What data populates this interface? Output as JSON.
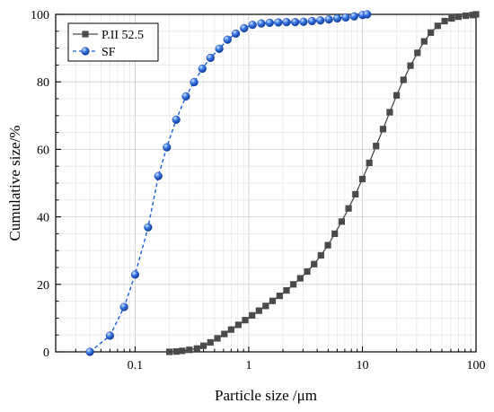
{
  "chart_data": {
    "type": "line",
    "xlabel": "Particle size /μm",
    "ylabel": "Cumulative size/%",
    "x_scale": "log",
    "xlim": [
      0.02,
      100
    ],
    "ylim": [
      0,
      100
    ],
    "x_ticks": [
      {
        "value": 0.1,
        "label": "0.1"
      },
      {
        "value": 1,
        "label": "1"
      },
      {
        "value": 10,
        "label": "10"
      },
      {
        "value": 100,
        "label": "100"
      }
    ],
    "y_ticks": [
      {
        "value": 0,
        "label": "0"
      },
      {
        "value": 20,
        "label": "20"
      },
      {
        "value": 40,
        "label": "40"
      },
      {
        "value": 60,
        "label": "60"
      },
      {
        "value": 80,
        "label": "80"
      },
      {
        "value": 100,
        "label": "100"
      }
    ],
    "grid": true,
    "legend_position": "top-left",
    "series": [
      {
        "name": "P.II 52.5",
        "color": "#4a4a4a",
        "marker": "square",
        "line_style": "solid",
        "x": [
          0.2,
          0.23,
          0.26,
          0.3,
          0.35,
          0.4,
          0.46,
          0.53,
          0.61,
          0.7,
          0.81,
          0.93,
          1.07,
          1.23,
          1.41,
          1.62,
          1.87,
          2.15,
          2.47,
          2.84,
          3.27,
          3.76,
          4.32,
          4.97,
          5.71,
          6.57,
          7.56,
          8.69,
          10,
          11.5,
          13.2,
          15.2,
          17.4,
          20,
          23,
          26.5,
          30.5,
          35,
          40,
          46,
          53,
          61,
          70,
          81,
          93,
          100
        ],
        "y": [
          0,
          0.1,
          0.3,
          0.6,
          1,
          1.8,
          2.8,
          4,
          5.3,
          6.6,
          8,
          9.4,
          10.8,
          12.2,
          13.6,
          15.1,
          16.6,
          18.2,
          20,
          21.8,
          23.8,
          26,
          28.6,
          31.6,
          35,
          38.6,
          42.5,
          46.7,
          51.2,
          56,
          61,
          66,
          71,
          76,
          80.6,
          84.8,
          88.6,
          92,
          94.6,
          96.6,
          98,
          98.8,
          99.3,
          99.6,
          99.8,
          100
        ]
      },
      {
        "name": "SF",
        "color": "#1f5fd6",
        "marker": "sphere",
        "line_style": "dashed",
        "x": [
          0.04,
          0.06,
          0.08,
          0.1,
          0.13,
          0.16,
          0.19,
          0.23,
          0.28,
          0.33,
          0.39,
          0.46,
          0.55,
          0.65,
          0.77,
          0.91,
          1.08,
          1.29,
          1.53,
          1.82,
          2.15,
          2.56,
          3.03,
          3.6,
          4.27,
          5.07,
          6.01,
          7.13,
          8.46,
          10.03,
          11
        ],
        "y": [
          0,
          4.8,
          13.3,
          22.9,
          36.9,
          52.1,
          60.6,
          68.8,
          75.7,
          79.9,
          83.9,
          87.1,
          89.8,
          92.5,
          94.3,
          95.9,
          96.9,
          97.3,
          97.5,
          97.6,
          97.7,
          97.7,
          97.8,
          98,
          98.2,
          98.5,
          98.8,
          99.1,
          99.4,
          99.8,
          100
        ]
      }
    ]
  }
}
